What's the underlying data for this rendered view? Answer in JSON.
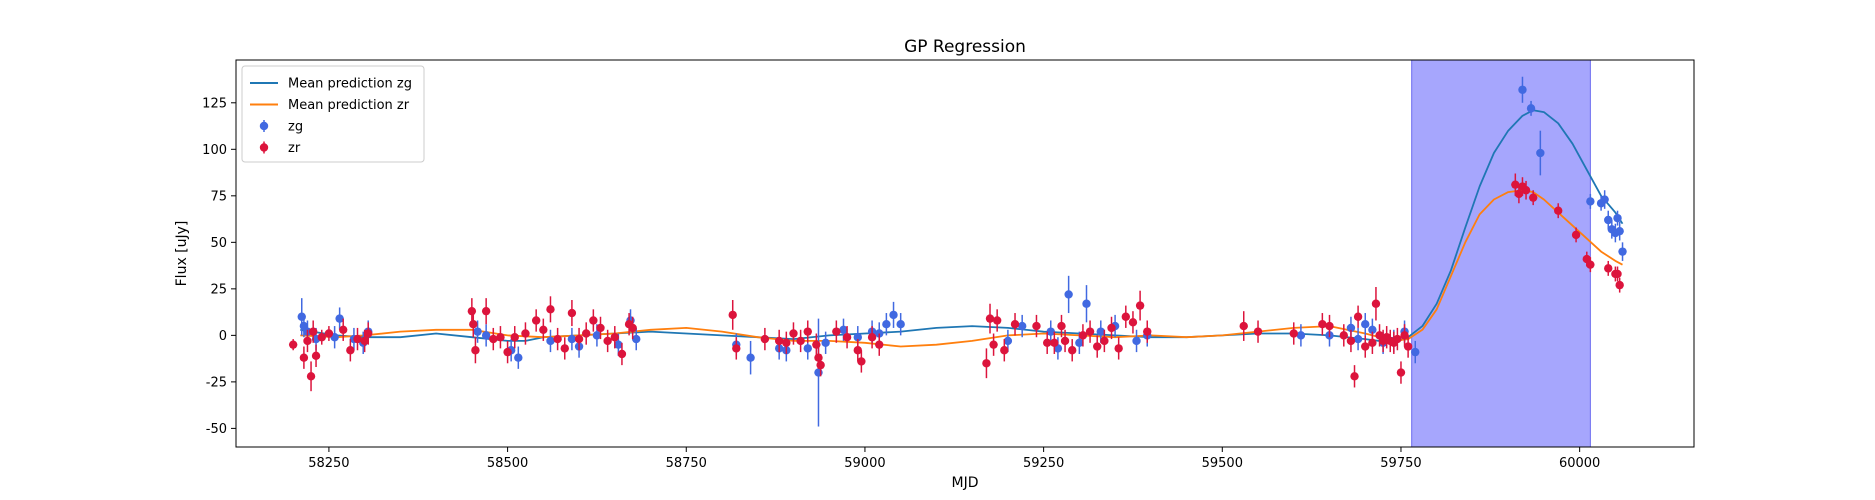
{
  "chart_data": {
    "type": "scatter",
    "title": "GP Regression",
    "xlabel": "MJD",
    "ylabel": "Flux [uJy]",
    "xlim": [
      58120,
      60160
    ],
    "ylim": [
      -60,
      148
    ],
    "xticks": [
      58250,
      58500,
      58750,
      59000,
      59250,
      59500,
      59750,
      60000
    ],
    "yticks": [
      -50,
      -25,
      0,
      25,
      50,
      75,
      100,
      125
    ],
    "highlight_span": {
      "x_start": 59765,
      "x_end": 60015,
      "color": "#a6a6fd"
    },
    "legend_position": "upper-left",
    "grid": false,
    "series": [
      {
        "name": "Mean prediction zg",
        "kind": "line",
        "color": "#1f77b4",
        "x": [
          58210,
          58260,
          58300,
          58350,
          58400,
          58450,
          58500,
          58525,
          58550,
          58600,
          58650,
          58700,
          58750,
          58800,
          58850,
          58900,
          58950,
          59000,
          59050,
          59100,
          59150,
          59200,
          59250,
          59300,
          59350,
          59400,
          59450,
          59500,
          59550,
          59600,
          59650,
          59700,
          59740,
          59760,
          59780,
          59800,
          59820,
          59840,
          59860,
          59880,
          59900,
          59920,
          59935,
          59950,
          59970,
          59990,
          60010,
          60030,
          60050,
          60060
        ],
        "y": [
          3,
          0,
          -1,
          -1,
          1,
          -1,
          -3,
          -3,
          -1,
          0,
          1,
          2,
          1,
          0,
          -1,
          -2,
          0,
          1,
          2,
          4,
          5,
          4,
          2,
          1,
          0,
          -1,
          -1,
          0,
          1,
          1,
          0,
          -2,
          -4,
          -1,
          5,
          17,
          35,
          58,
          80,
          98,
          110,
          118,
          121,
          120,
          114,
          103,
          89,
          75,
          66,
          60
        ]
      },
      {
        "name": "Mean prediction zr",
        "kind": "line",
        "color": "#ff7f0e",
        "x": [
          58210,
          58260,
          58300,
          58350,
          58400,
          58450,
          58500,
          58550,
          58600,
          58650,
          58700,
          58750,
          58800,
          58850,
          58900,
          58950,
          59000,
          59050,
          59100,
          59150,
          59200,
          59250,
          59300,
          59350,
          59400,
          59450,
          59500,
          59550,
          59600,
          59650,
          59700,
          59740,
          59760,
          59780,
          59800,
          59820,
          59840,
          59860,
          59880,
          59900,
          59920,
          59935,
          59950,
          59970,
          59990,
          60010,
          60030,
          60050,
          60060
        ],
        "y": [
          0,
          -1,
          0,
          2,
          3,
          3,
          0,
          -1,
          0,
          1,
          3,
          4,
          2,
          -1,
          -3,
          -3,
          -4,
          -6,
          -5,
          -3,
          0,
          1,
          0,
          -1,
          0,
          -1,
          0,
          2,
          4,
          5,
          1,
          -3,
          -2,
          3,
          14,
          32,
          50,
          65,
          73,
          77,
          78,
          77,
          73,
          66,
          59,
          52,
          45,
          40,
          38
        ]
      },
      {
        "name": "zg",
        "kind": "errorbar",
        "color": "#4169e1",
        "x": [
          58212,
          58215,
          58220,
          58232,
          58258,
          58265,
          58285,
          58298,
          58305,
          58458,
          58470,
          58505,
          58515,
          58560,
          58590,
          58600,
          58625,
          58655,
          58672,
          58680,
          58820,
          58840,
          58880,
          58890,
          58920,
          58935,
          58945,
          58970,
          58990,
          59010,
          59020,
          59030,
          59040,
          59050,
          59200,
          59220,
          59260,
          59270,
          59285,
          59300,
          59310,
          59330,
          59350,
          59380,
          59395,
          59610,
          59650,
          59680,
          59690,
          59700,
          59710,
          59725,
          59740,
          59755,
          59770,
          59920,
          59932,
          59945,
          60015,
          60030,
          60035,
          60040,
          60045,
          60050,
          60053,
          60056,
          60060
        ],
        "y": [
          10,
          5,
          2,
          -2,
          -1,
          9,
          -2,
          -4,
          2,
          2,
          0,
          -8,
          -12,
          -3,
          -2,
          -6,
          0,
          -5,
          8,
          -2,
          -5,
          -12,
          -7,
          -8,
          -7,
          -20,
          -4,
          3,
          -1,
          2,
          1,
          6,
          11,
          6,
          -3,
          5,
          2,
          -7,
          22,
          -4,
          17,
          2,
          5,
          -3,
          0,
          0,
          0,
          4,
          -2,
          6,
          3,
          -4,
          -3,
          2,
          -9,
          132,
          122,
          98,
          72,
          71,
          73,
          62,
          57,
          55,
          63,
          56,
          45
        ],
        "err": [
          10,
          6,
          6,
          6,
          6,
          6,
          6,
          6,
          6,
          6,
          6,
          6,
          6,
          6,
          6,
          6,
          6,
          6,
          6,
          6,
          6,
          9,
          6,
          6,
          6,
          29,
          6,
          6,
          6,
          6,
          6,
          6,
          7,
          6,
          6,
          6,
          6,
          6,
          10,
          6,
          10,
          6,
          6,
          6,
          6,
          6,
          6,
          6,
          6,
          6,
          6,
          6,
          6,
          6,
          6,
          7,
          4,
          12,
          4,
          4,
          5,
          5,
          5,
          5,
          4,
          5,
          5
        ]
      },
      {
        "name": "zr",
        "kind": "errorbar",
        "color": "#dc143c",
        "x": [
          58200,
          58215,
          58220,
          58225,
          58228,
          58232,
          58240,
          58250,
          58270,
          58280,
          58290,
          58300,
          58305,
          58450,
          58452,
          58455,
          58470,
          58480,
          58490,
          58500,
          58510,
          58525,
          58540,
          58550,
          58560,
          58570,
          58580,
          58590,
          58600,
          58610,
          58620,
          58630,
          58640,
          58650,
          58660,
          58670,
          58675,
          58815,
          58820,
          58860,
          58880,
          58890,
          58900,
          58910,
          58920,
          58932,
          58935,
          58938,
          58960,
          58975,
          58990,
          58995,
          59010,
          59020,
          59170,
          59175,
          59180,
          59185,
          59195,
          59210,
          59240,
          59255,
          59265,
          59275,
          59280,
          59290,
          59305,
          59315,
          59325,
          59335,
          59345,
          59355,
          59365,
          59375,
          59385,
          59395,
          59530,
          59550,
          59600,
          59640,
          59650,
          59670,
          59680,
          59685,
          59690,
          59700,
          59710,
          59715,
          59720,
          59725,
          59730,
          59735,
          59740,
          59745,
          59750,
          59755,
          59760,
          59910,
          59915,
          59920,
          59925,
          59935,
          59970,
          59995,
          60010,
          60015,
          60040,
          60050,
          60053,
          60056
        ],
        "y": [
          -5,
          -12,
          -3,
          -22,
          2,
          -11,
          -1,
          1,
          3,
          -8,
          -2,
          -3,
          1,
          13,
          6,
          -8,
          13,
          -2,
          -1,
          -9,
          -1,
          1,
          8,
          3,
          14,
          -2,
          -7,
          12,
          -2,
          1,
          8,
          4,
          -3,
          -1,
          -10,
          6,
          4,
          11,
          -7,
          -2,
          -3,
          -4,
          1,
          -3,
          2,
          -5,
          -12,
          -16,
          2,
          -1,
          -8,
          -14,
          -1,
          -5,
          -15,
          9,
          -5,
          8,
          -8,
          6,
          5,
          -4,
          -4,
          5,
          -3,
          -8,
          0,
          2,
          -6,
          -3,
          4,
          -7,
          10,
          7,
          16,
          2,
          5,
          2,
          1,
          6,
          5,
          0,
          -3,
          -22,
          10,
          -6,
          -4,
          17,
          0,
          -3,
          -1,
          -3,
          -4,
          -2,
          -20,
          0,
          -6,
          81,
          76,
          80,
          78,
          74,
          67,
          54,
          41,
          38,
          36,
          33,
          33,
          27
        ],
        "err": [
          3,
          6,
          6,
          8,
          6,
          6,
          4,
          4,
          6,
          6,
          6,
          6,
          6,
          7,
          7,
          7,
          7,
          6,
          6,
          6,
          6,
          6,
          6,
          6,
          7,
          6,
          6,
          7,
          6,
          6,
          6,
          6,
          6,
          6,
          6,
          6,
          6,
          8,
          6,
          6,
          6,
          6,
          6,
          6,
          6,
          6,
          6,
          6,
          6,
          6,
          6,
          6,
          6,
          6,
          8,
          8,
          6,
          6,
          6,
          6,
          6,
          6,
          6,
          6,
          6,
          6,
          6,
          6,
          6,
          6,
          6,
          6,
          6,
          6,
          8,
          6,
          8,
          6,
          6,
          6,
          6,
          6,
          6,
          6,
          6,
          6,
          6,
          9,
          6,
          6,
          6,
          6,
          6,
          6,
          6,
          6,
          6,
          6,
          5,
          5,
          5,
          4,
          4,
          4,
          4,
          4,
          4,
          4,
          4,
          4
        ]
      }
    ]
  }
}
